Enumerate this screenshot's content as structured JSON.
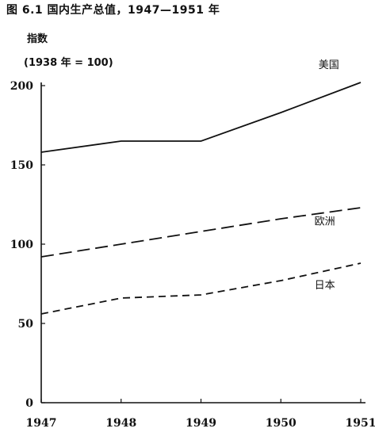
{
  "figure": {
    "caption": "图 6.1  国内生产总值，1947—1951 年",
    "ylabel": "指数",
    "yunit": "(1938 年 = 100)"
  },
  "chart_data": {
    "type": "line",
    "title": "图 6.1  国内生产总值，1947—1951 年",
    "xlabel": "",
    "ylabel": "指数 (1938 年 = 100)",
    "x": [
      "1947",
      "1948",
      "1949",
      "1950",
      "1951"
    ],
    "xticks": [
      "1947",
      "1948",
      "1949",
      "1950",
      "1951"
    ],
    "yticks": [
      0,
      50,
      100,
      150,
      200
    ],
    "ylim": [
      0,
      200
    ],
    "grid": false,
    "series": [
      {
        "name": "美国",
        "values": [
          158,
          165,
          165,
          183,
          202
        ],
        "style": "solid"
      },
      {
        "name": "欧洲",
        "values": [
          92,
          100,
          108,
          116,
          123
        ],
        "style": "dashed"
      },
      {
        "name": "日本",
        "values": [
          56,
          66,
          68,
          77,
          88
        ],
        "style": "dashed"
      }
    ]
  }
}
